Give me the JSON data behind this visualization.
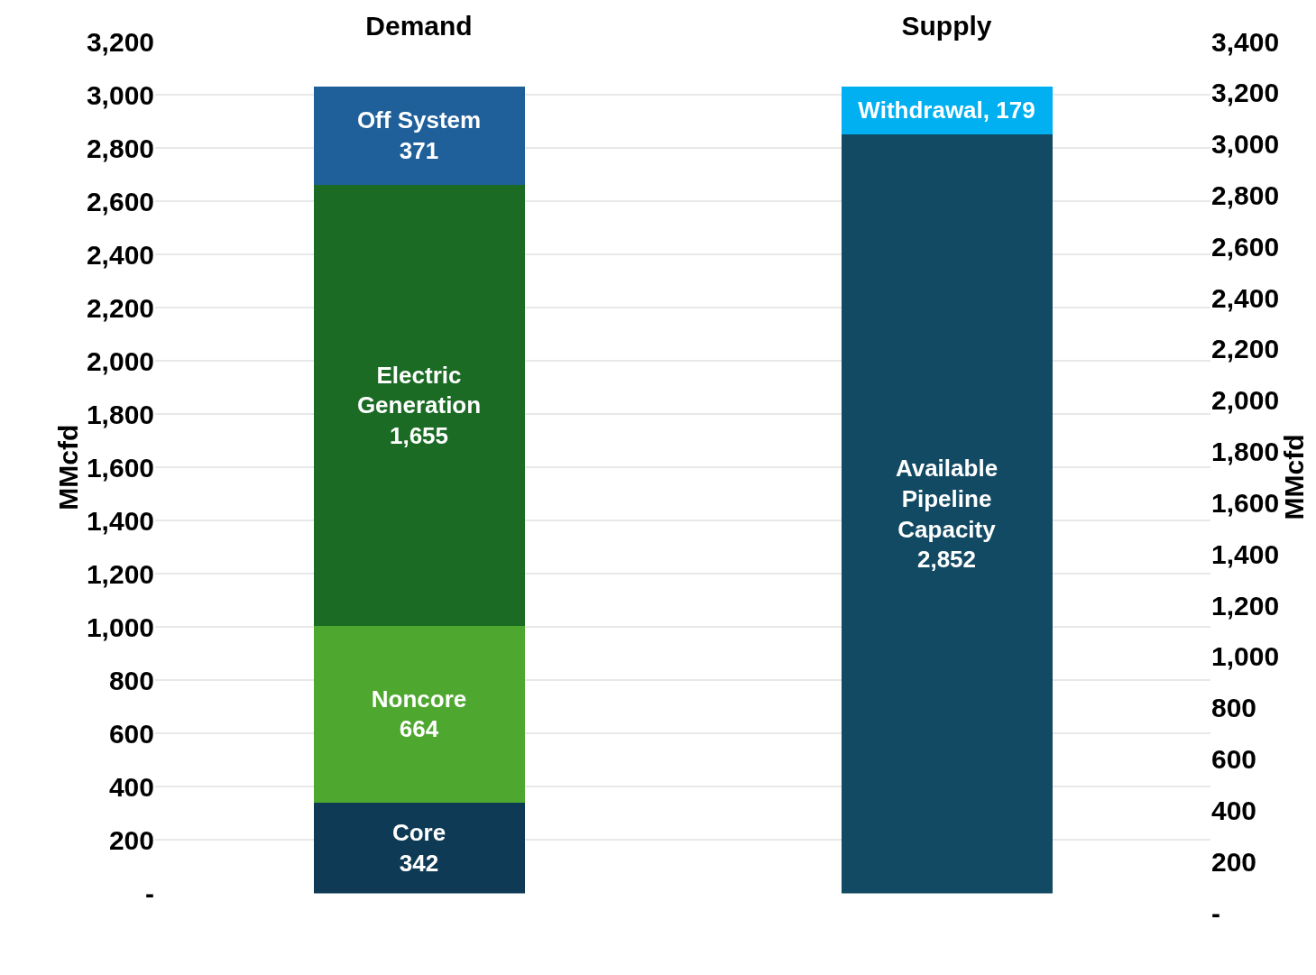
{
  "chart_data": {
    "type": "bar",
    "stacked": true,
    "categories": [
      "Demand",
      "Supply"
    ],
    "series": [
      {
        "color": "#0f3a55",
        "values": [
          342,
          null
        ],
        "value_labels": [
          "Core\n342",
          null
        ]
      },
      {
        "color": "#4ea72e",
        "values": [
          664,
          null
        ],
        "value_labels": [
          "Noncore\n664",
          null
        ]
      },
      {
        "color": "#1b6b25",
        "values": [
          1655,
          null
        ],
        "value_labels": [
          "Electric\nGeneration\n1,655",
          null
        ]
      },
      {
        "color": "#1f5f9a",
        "values": [
          371,
          null
        ],
        "value_labels": [
          "Off System\n371",
          null
        ]
      },
      {
        "color": "#134a63",
        "values": [
          null,
          2852
        ],
        "value_labels": [
          null,
          "Available\nPipeline\nCapacity\n2,852"
        ]
      },
      {
        "color": "#00b0f0",
        "values": [
          null,
          179
        ],
        "value_labels": [
          null,
          "Withdrawal, 179"
        ]
      }
    ],
    "ylabel": "MMcfd",
    "y2label": "MMcfd",
    "ylim": [
      0,
      3200
    ],
    "yticks": [
      {
        "value": 0,
        "label": "-"
      },
      {
        "value": 200,
        "label": "200"
      },
      {
        "value": 400,
        "label": "400"
      },
      {
        "value": 600,
        "label": "600"
      },
      {
        "value": 800,
        "label": "800"
      },
      {
        "value": 1000,
        "label": "1,000"
      },
      {
        "value": 1200,
        "label": "1,200"
      },
      {
        "value": 1400,
        "label": "1,400"
      },
      {
        "value": 1600,
        "label": "1,600"
      },
      {
        "value": 1800,
        "label": "1,800"
      },
      {
        "value": 2000,
        "label": "2,000"
      },
      {
        "value": 2200,
        "label": "2,200"
      },
      {
        "value": 2400,
        "label": "2,400"
      },
      {
        "value": 2600,
        "label": "2,600"
      },
      {
        "value": 2800,
        "label": "2,800"
      },
      {
        "value": 3000,
        "label": "3,000"
      },
      {
        "value": 3200,
        "label": "3,200"
      }
    ],
    "y2lim": [
      0,
      3400
    ],
    "y2ticks": [
      {
        "value": 0,
        "label": "-"
      },
      {
        "value": 200,
        "label": "200"
      },
      {
        "value": 400,
        "label": "400"
      },
      {
        "value": 600,
        "label": "600"
      },
      {
        "value": 800,
        "label": "800"
      },
      {
        "value": 1000,
        "label": "1,000"
      },
      {
        "value": 1200,
        "label": "1,200"
      },
      {
        "value": 1400,
        "label": "1,400"
      },
      {
        "value": 1600,
        "label": "1,600"
      },
      {
        "value": 1800,
        "label": "1,800"
      },
      {
        "value": 2000,
        "label": "2,000"
      },
      {
        "value": 2200,
        "label": "2,200"
      },
      {
        "value": 2400,
        "label": "2,400"
      },
      {
        "value": 2600,
        "label": "2,600"
      },
      {
        "value": 2800,
        "label": "2,800"
      },
      {
        "value": 3000,
        "label": "3,000"
      },
      {
        "value": 3200,
        "label": "3,200"
      },
      {
        "value": 3400,
        "label": "3,400"
      }
    ],
    "grid": "y",
    "legend": false
  }
}
